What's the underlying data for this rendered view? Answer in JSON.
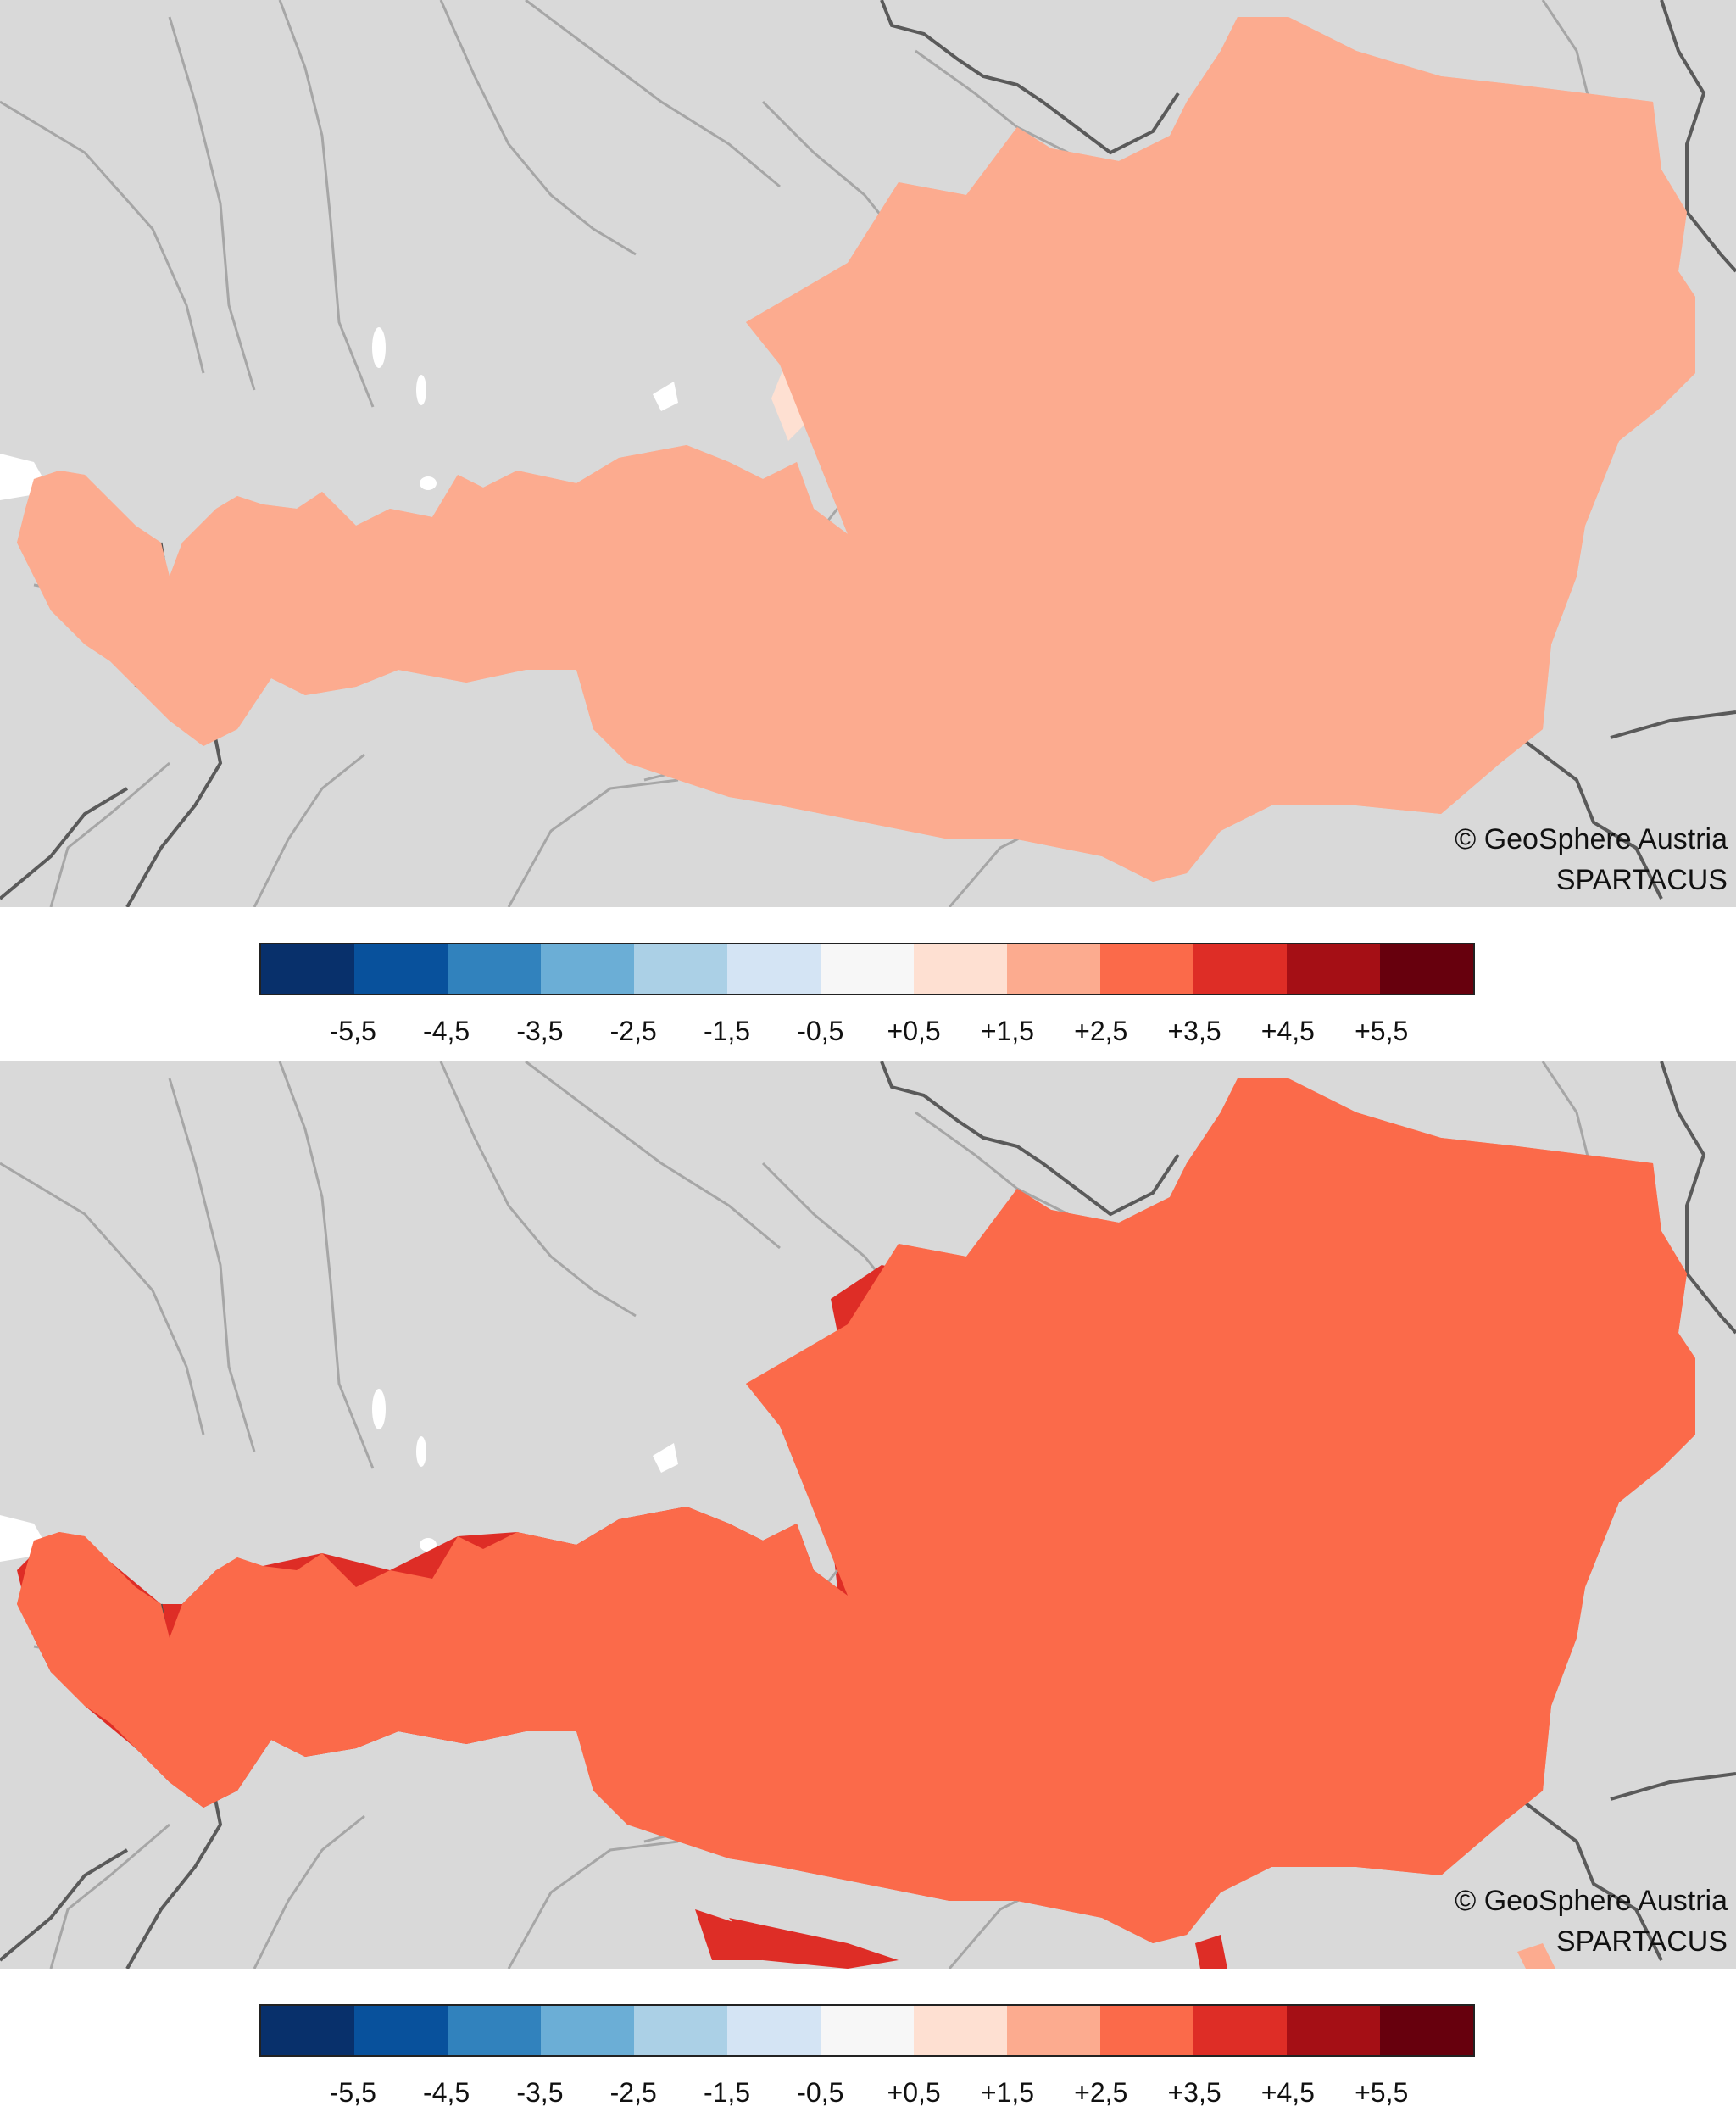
{
  "maps": [
    {
      "credit_line1": "© GeoSphere Austria",
      "credit_line2": "SPARTACUS",
      "base_class_color": "#fcab8f",
      "secondary_class_colors": [
        "#fee0d2",
        "#fb6a4a"
      ]
    },
    {
      "credit_line1": "© GeoSphere Austria",
      "credit_line2": "SPARTACUS",
      "base_class_color": "#fb6a4a",
      "secondary_class_colors": [
        "#de2d26",
        "#a50f15",
        "#fcab8f"
      ]
    }
  ],
  "legend": {
    "labels": [
      "-5,5",
      "-4,5",
      "-3,5",
      "-2,5",
      "-1,5",
      "-0,5",
      "+0,5",
      "+1,5",
      "+2,5",
      "+3,5",
      "+4,5",
      "+5,5"
    ],
    "colors": [
      "#08306b",
      "#08519c",
      "#3182bd",
      "#6baed6",
      "#abd0e6",
      "#d4e4f4",
      "#f7f7f7",
      "#fee0d2",
      "#fcab8f",
      "#fb6a4a",
      "#de2d26",
      "#a50f15",
      "#67000d"
    ]
  },
  "style": {
    "background_land": "#d9d9d9",
    "border_color": "#4d4d4d",
    "river_color": "#a6a6a6",
    "lake_color": "#ffffff"
  }
}
